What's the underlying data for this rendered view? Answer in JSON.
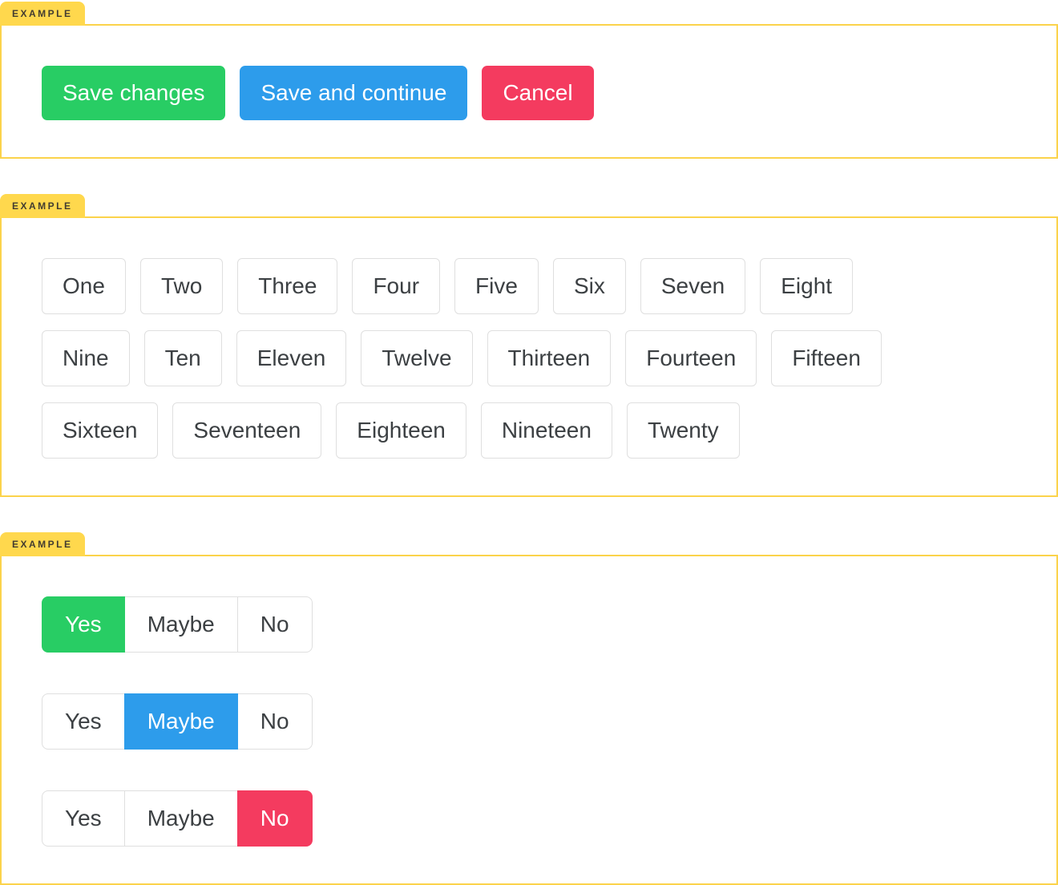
{
  "example_tab_label": "EXAMPLE",
  "colors": {
    "tab_yellow": "#FFD84D",
    "box_border_yellow": "#FBD34B",
    "tab_text": "#423C30",
    "green": "#28CD64",
    "blue": "#2D9CEB",
    "red": "#F43B5F",
    "outline_border_gray": "#DFDFDF",
    "button_text_dark": "#3C4043",
    "selected_text": "#FFFFFF"
  },
  "section1": {
    "buttons": [
      {
        "label": "Save changes",
        "color": "green"
      },
      {
        "label": "Save and continue",
        "color": "blue"
      },
      {
        "label": "Cancel",
        "color": "red"
      }
    ]
  },
  "section2": {
    "rows": [
      [
        "One",
        "Two",
        "Three",
        "Four",
        "Five",
        "Six",
        "Seven",
        "Eight"
      ],
      [
        "Nine",
        "Ten",
        "Eleven",
        "Twelve",
        "Thirteen",
        "Fourteen",
        "Fifteen"
      ],
      [
        "Sixteen",
        "Seventeen",
        "Eighteen",
        "Nineteen",
        "Twenty"
      ]
    ]
  },
  "section3": {
    "groups": [
      {
        "options": [
          "Yes",
          "Maybe",
          "No"
        ],
        "selected_index": 0,
        "selected_color": "green"
      },
      {
        "options": [
          "Yes",
          "Maybe",
          "No"
        ],
        "selected_index": 1,
        "selected_color": "blue"
      },
      {
        "options": [
          "Yes",
          "Maybe",
          "No"
        ],
        "selected_index": 2,
        "selected_color": "red"
      }
    ]
  }
}
